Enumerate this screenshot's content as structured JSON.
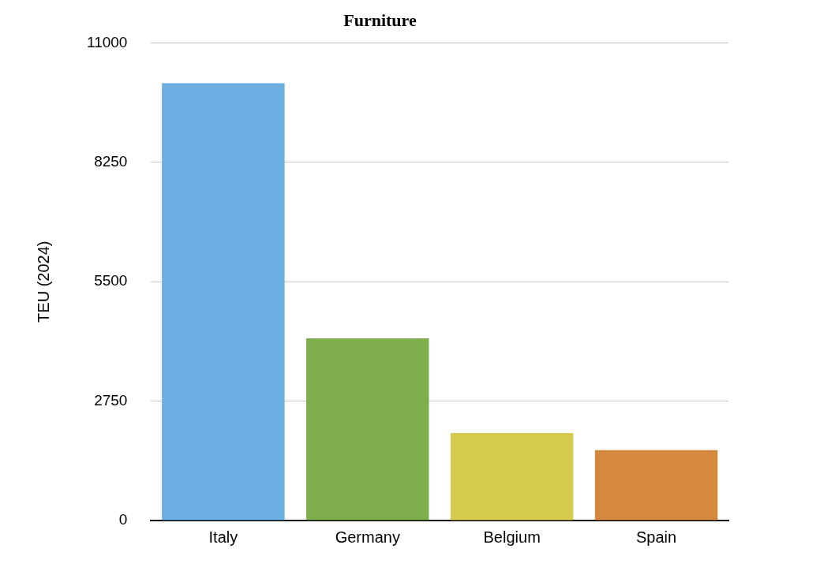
{
  "chart_data": {
    "type": "bar",
    "title": "Furniture",
    "y_label": "TEU (2024)",
    "categories": [
      "Italy",
      "Germany",
      "Belgium",
      "Spain"
    ],
    "values": [
      10070,
      4195,
      2015,
      1620
    ],
    "colors": [
      "#6aaee2",
      "#7fae4c",
      "#d6ca4f",
      "#d4893f"
    ],
    "ylim": [
      0,
      11000
    ],
    "yticks": [
      0,
      2750,
      5500,
      8250,
      11000
    ],
    "grid": true
  }
}
